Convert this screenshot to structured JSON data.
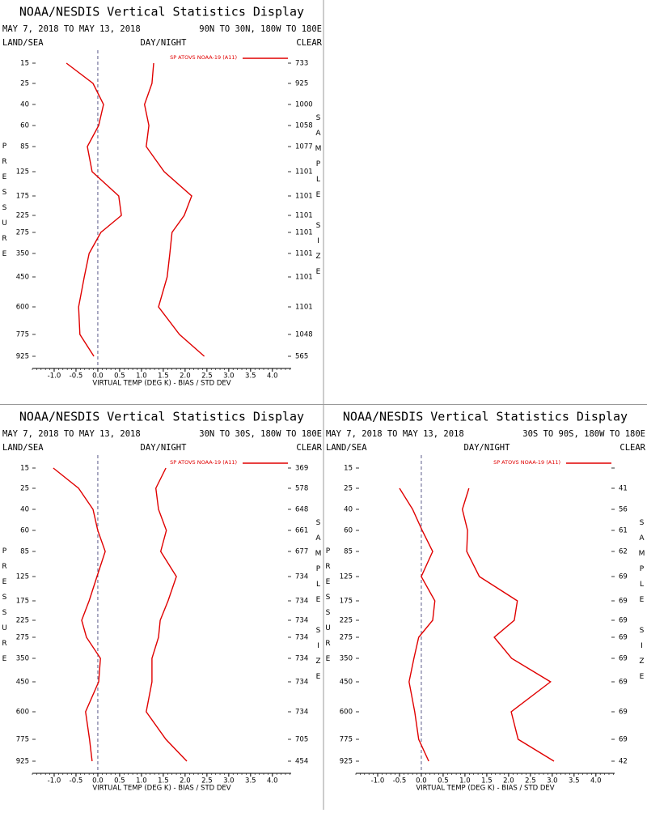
{
  "chart_data": [
    {
      "type": "line",
      "title": "NOAA/NESDIS Vertical Statistics Display",
      "date_range": "MAY 7, 2018 TO MAY 13, 2018",
      "region": "90N TO 30N, 180W TO 180E",
      "land_sea": "LAND/SEA",
      "day_night": "DAY/NIGHT",
      "sky": "CLEAR",
      "y_label": "PRESSURE",
      "y2_label": "SAMPLE SIZE",
      "x_label": "VIRTUAL TEMP (DEG K) - BIAS / STD DEV",
      "categories": [
        "15",
        "25",
        "40",
        "60",
        "85",
        "125",
        "175",
        "225",
        "275",
        "350",
        "450",
        "600",
        "775",
        "925"
      ],
      "sample_size": [
        733,
        925,
        1000,
        1058,
        1077,
        1101,
        1101,
        1101,
        1101,
        1101,
        1101,
        1101,
        1048,
        565
      ],
      "series": [
        {
          "name": "SP ATOVS NOAA-19 (A11)",
          "color": "#e00000",
          "values": [
            -0.72,
            -0.11,
            0.13,
            0.02,
            -0.24,
            -0.13,
            0.48,
            0.54,
            0.07,
            -0.2,
            -0.31,
            -0.44,
            -0.41,
            -0.09
          ]
        },
        {
          "color": "#e00000",
          "values": [
            1.28,
            1.24,
            1.07,
            1.17,
            1.11,
            1.52,
            2.15,
            1.98,
            1.7,
            1.65,
            1.59,
            1.39,
            1.87,
            2.44
          ]
        }
      ],
      "zero_line_color": "#5a5a8a",
      "xlim": [
        -1.5,
        4.43
      ],
      "xticks": [
        {
          "value": -1,
          "label": "-1.0"
        },
        -0.5,
        {
          "value": 0,
          "label": "0.0"
        },
        0.5,
        {
          "value": 1,
          "label": "1.0"
        },
        1.5,
        {
          "value": 2,
          "label": "2.0"
        },
        2.5,
        {
          "value": 3,
          "label": "3.0"
        },
        3.5,
        {
          "value": 4,
          "label": "4.0"
        }
      ]
    },
    {
      "type": "line",
      "title": "NOAA/NESDIS Vertical Statistics Display",
      "date_range": "MAY 7, 2018 TO MAY 13, 2018",
      "region": "30N TO 30S, 180W TO 180E",
      "land_sea": "LAND/SEA",
      "day_night": "DAY/NIGHT",
      "sky": "CLEAR",
      "y_label": "PRESSURE",
      "y2_label": "SAMPLE SIZE",
      "x_label": "VIRTUAL TEMP (DEG K) - BIAS / STD DEV",
      "categories": [
        "15",
        "25",
        "40",
        "60",
        "85",
        "125",
        "175",
        "225",
        "275",
        "350",
        "450",
        "600",
        "775",
        "925"
      ],
      "sample_size": [
        369,
        578,
        648,
        661,
        677,
        734,
        734,
        734,
        734,
        734,
        734,
        734,
        705,
        454
      ],
      "series": [
        {
          "name": "SP ATOVS NOAA-19 (A11)",
          "color": "#e00000",
          "values": [
            -1.02,
            -0.44,
            -0.11,
            0.0,
            0.17,
            -0.02,
            -0.2,
            -0.37,
            -0.26,
            0.06,
            0.02,
            -0.28,
            -0.19,
            -0.13
          ]
        },
        {
          "color": "#e00000",
          "values": [
            1.56,
            1.33,
            1.39,
            1.57,
            1.44,
            1.8,
            1.61,
            1.43,
            1.39,
            1.24,
            1.24,
            1.11,
            1.56,
            2.04
          ]
        }
      ],
      "zero_line_color": "#5a5a8a",
      "xlim": [
        -1.5,
        4.43
      ],
      "xticks": [
        {
          "value": -1,
          "label": "-1.0"
        },
        -0.5,
        {
          "value": 0,
          "label": "0.0"
        },
        0.5,
        {
          "value": 1,
          "label": "1.0"
        },
        1.5,
        {
          "value": 2,
          "label": "2.0"
        },
        2.5,
        {
          "value": 3,
          "label": "3.0"
        },
        3.5,
        {
          "value": 4,
          "label": "4.0"
        }
      ]
    },
    {
      "type": "line",
      "title": "NOAA/NESDIS Vertical Statistics Display",
      "date_range": "MAY 7, 2018 TO MAY 13, 2018",
      "region": "30S TO 90S, 180W TO 180E",
      "land_sea": "LAND/SEA",
      "day_night": "DAY/NIGHT",
      "sky": "CLEAR",
      "y_label": "PRESSURE",
      "y2_label": "SAMPLE SIZE",
      "x_label": "VIRTUAL TEMP (DEG K) - BIAS / STD DEV",
      "categories": [
        "15",
        "25",
        "40",
        "60",
        "85",
        "125",
        "175",
        "225",
        "275",
        "350",
        "450",
        "600",
        "775",
        "925"
      ],
      "sample_size": [
        null,
        41,
        56,
        61,
        62,
        69,
        69,
        69,
        69,
        69,
        69,
        69,
        69,
        42
      ],
      "series": [
        {
          "name": "SP ATOVS NOAA-19 (A11)",
          "color": "#e00000",
          "values": [
            null,
            -0.5,
            -0.2,
            0.02,
            0.26,
            0.0,
            0.31,
            0.26,
            -0.06,
            -0.17,
            -0.28,
            -0.15,
            -0.06,
            0.17
          ]
        },
        {
          "color": "#e00000",
          "values": [
            null,
            1.09,
            0.94,
            1.06,
            1.04,
            1.33,
            2.2,
            2.13,
            1.67,
            2.07,
            2.96,
            2.06,
            2.22,
            3.04
          ]
        }
      ],
      "zero_line_color": "#5a5a8a",
      "xlim": [
        -1.5,
        4.43
      ],
      "xticks": [
        {
          "value": -1,
          "label": "-1.0"
        },
        -0.5,
        {
          "value": 0,
          "label": "0.0"
        },
        0.5,
        {
          "value": 1,
          "label": "1.0"
        },
        1.5,
        {
          "value": 2,
          "label": "2.0"
        },
        2.5,
        {
          "value": 3,
          "label": "3.0"
        },
        3.5,
        {
          "value": 4,
          "label": "4.0"
        }
      ]
    }
  ]
}
